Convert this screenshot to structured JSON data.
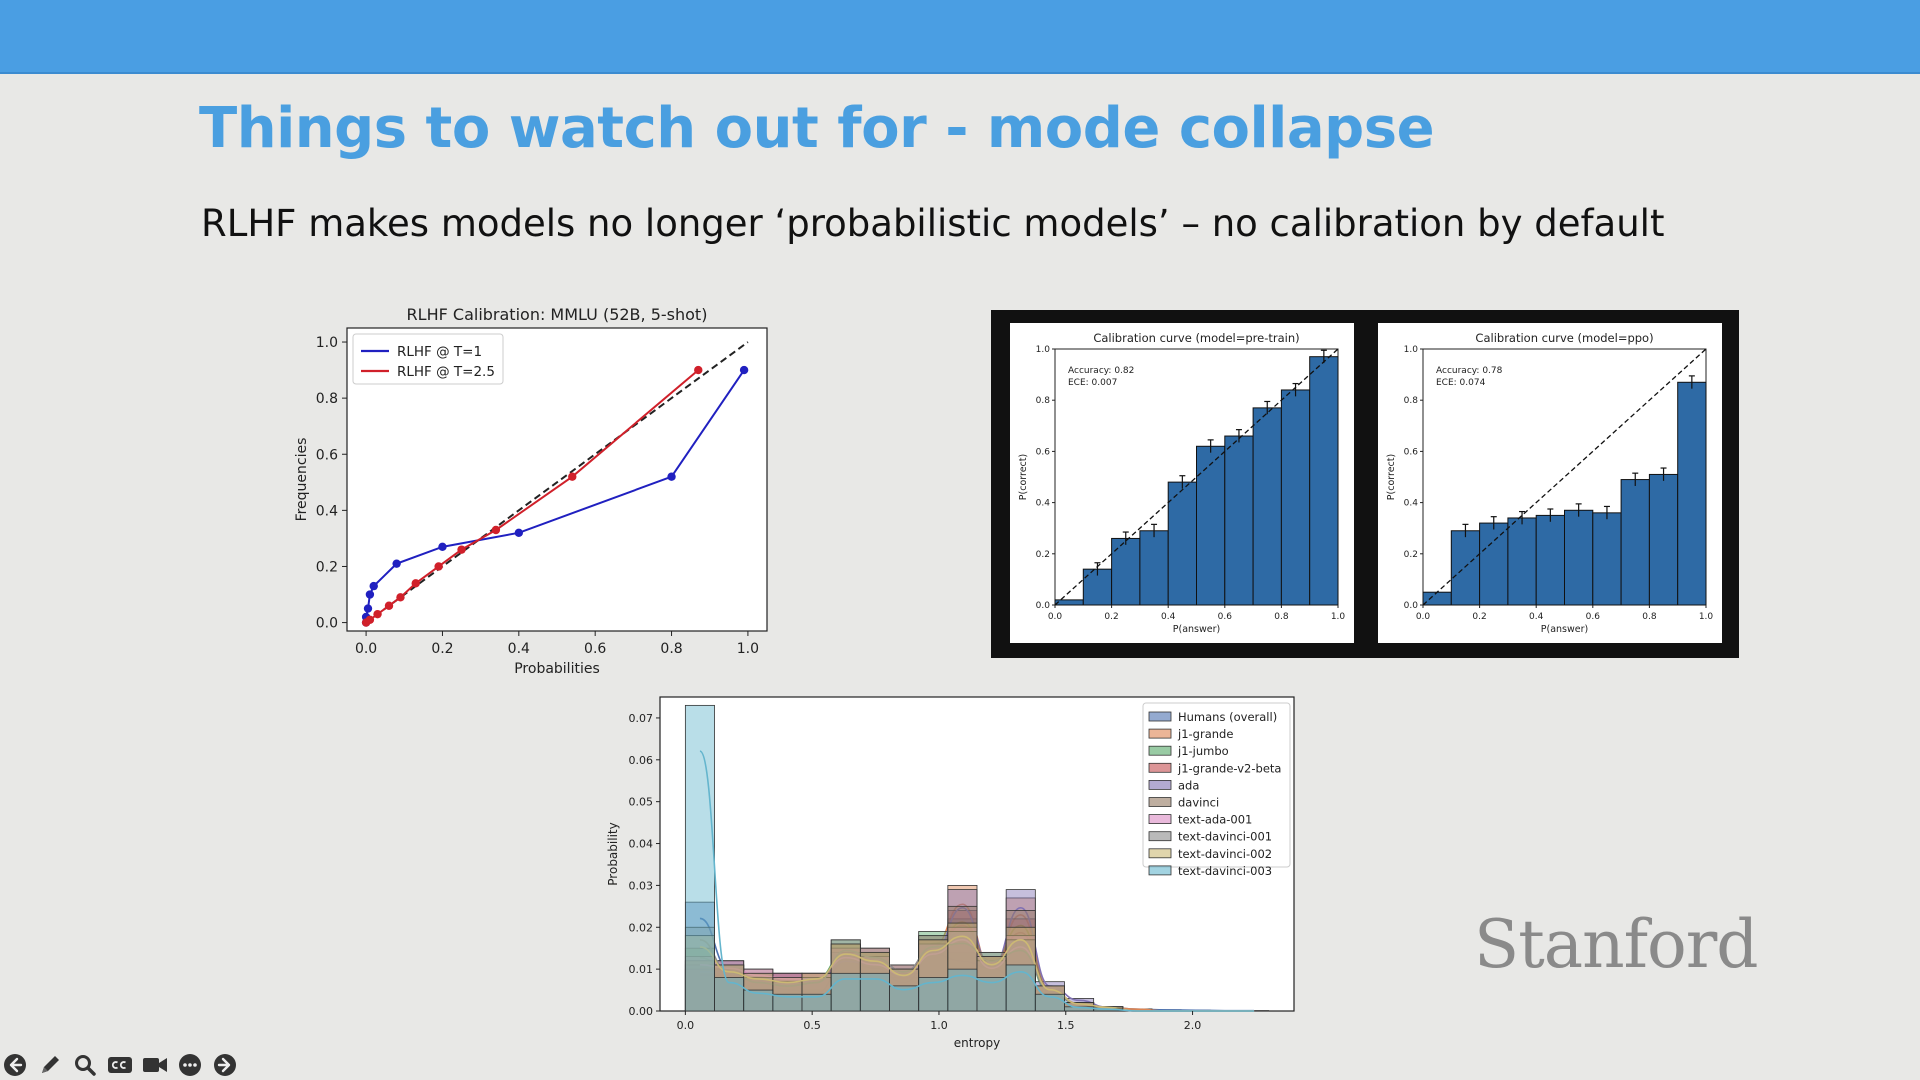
{
  "slide": {
    "title": "Things to watch out for - mode collapse",
    "subtitle": "RLHF makes models no longer ‘probabilistic models’ – no calibration by default",
    "logo_text": "Stanford",
    "colors": {
      "header_bar": "#4a9ee3",
      "title": "#4a9fe0",
      "background": "#e8e8e6"
    }
  },
  "toolbar": {
    "icons": [
      "back-icon",
      "pencil-icon",
      "magnify-icon",
      "closed-captions-icon",
      "video-camera-icon",
      "more-icon",
      "forward-icon"
    ]
  },
  "chart_data": [
    {
      "type": "line",
      "title": "RLHF  Calibration: MMLU (52B, 5-shot)",
      "xlabel": "Probabilities",
      "ylabel": "Frequencies",
      "xlim": [
        -0.05,
        1.05
      ],
      "ylim": [
        -0.03,
        1.05
      ],
      "xticks": [
        "0.0",
        "0.2",
        "0.4",
        "0.6",
        "0.8",
        "1.0"
      ],
      "yticks": [
        "0.0",
        "0.2",
        "0.4",
        "0.6",
        "0.8",
        "1.0"
      ],
      "legend_position": "top-left",
      "series": [
        {
          "name": "RLHF @ T=1",
          "color": "#2020c0",
          "x": [
            0.0,
            0.0,
            0.005,
            0.01,
            0.02,
            0.08,
            0.2,
            0.4,
            0.8,
            0.99
          ],
          "y": [
            0.0,
            0.02,
            0.05,
            0.1,
            0.13,
            0.21,
            0.27,
            0.32,
            0.52,
            0.9
          ]
        },
        {
          "name": "RLHF @ T=2.5",
          "color": "#d0202a",
          "x": [
            0.0,
            0.01,
            0.03,
            0.06,
            0.09,
            0.13,
            0.19,
            0.25,
            0.34,
            0.54,
            0.87
          ],
          "y": [
            0.0,
            0.01,
            0.03,
            0.06,
            0.09,
            0.14,
            0.2,
            0.26,
            0.33,
            0.52,
            0.9
          ]
        }
      ],
      "reference_line": {
        "style": "dashed",
        "color": "#222222",
        "x": [
          0.0,
          1.0
        ],
        "y": [
          0.0,
          1.0
        ]
      }
    },
    {
      "type": "bar",
      "title": "Calibration curve (model=pre-train)",
      "xlabel": "P(answer)",
      "ylabel": "P(correct)",
      "annotations": [
        "Accuracy: 0.82",
        "ECE: 0.007"
      ],
      "xlim": [
        0,
        1
      ],
      "ylim": [
        0,
        1
      ],
      "xticks": [
        "0.0",
        "0.2",
        "0.4",
        "0.6",
        "0.8",
        "1.0"
      ],
      "yticks": [
        "0.0",
        "0.2",
        "0.4",
        "0.6",
        "0.8",
        "1.0"
      ],
      "categories": [
        "0.0-0.1",
        "0.1-0.2",
        "0.2-0.3",
        "0.3-0.4",
        "0.4-0.5",
        "0.5-0.6",
        "0.6-0.7",
        "0.7-0.8",
        "0.8-0.9",
        "0.9-1.0"
      ],
      "values": [
        0.02,
        0.14,
        0.26,
        0.29,
        0.48,
        0.62,
        0.66,
        0.77,
        0.84,
        0.97
      ],
      "error_bars": true,
      "bar_color": "#2e6aa5",
      "reference_line": {
        "style": "dashed",
        "x": [
          0,
          1
        ],
        "y": [
          0,
          1
        ]
      }
    },
    {
      "type": "bar",
      "title": "Calibration curve (model=ppo)",
      "xlabel": "P(answer)",
      "ylabel": "P(correct)",
      "annotations": [
        "Accuracy: 0.78",
        "ECE: 0.074"
      ],
      "xlim": [
        0,
        1
      ],
      "ylim": [
        0,
        1
      ],
      "xticks": [
        "0.0",
        "0.2",
        "0.4",
        "0.6",
        "0.8",
        "1.0"
      ],
      "yticks": [
        "0.0",
        "0.2",
        "0.4",
        "0.6",
        "0.8",
        "1.0"
      ],
      "categories": [
        "0.0-0.1",
        "0.1-0.2",
        "0.2-0.3",
        "0.3-0.4",
        "0.4-0.5",
        "0.5-0.6",
        "0.6-0.7",
        "0.7-0.8",
        "0.8-0.9",
        "0.9-1.0"
      ],
      "values": [
        0.05,
        0.29,
        0.32,
        0.34,
        0.35,
        0.37,
        0.36,
        0.49,
        0.51,
        0.87
      ],
      "error_bars": true,
      "bar_color": "#2e6aa5",
      "reference_line": {
        "style": "dashed",
        "x": [
          0,
          1
        ],
        "y": [
          0,
          1
        ]
      }
    },
    {
      "type": "bar",
      "subtype": "overlaid-histogram",
      "xlabel": "entropy",
      "ylabel": "Probability",
      "xlim": [
        -0.1,
        2.4
      ],
      "ylim": [
        0,
        0.075
      ],
      "xticks": [
        "0.0",
        "0.5",
        "1.0",
        "1.5",
        "2.0"
      ],
      "yticks": [
        "0.00",
        "0.01",
        "0.02",
        "0.03",
        "0.04",
        "0.05",
        "0.06",
        "0.07"
      ],
      "legend_position": "top-right",
      "bin_edges": [
        0.0,
        0.115,
        0.23,
        0.345,
        0.46,
        0.575,
        0.69,
        0.805,
        0.92,
        1.035,
        1.15,
        1.265,
        1.38,
        1.495,
        1.61,
        1.725,
        1.84,
        1.955,
        2.07,
        2.185,
        2.3
      ],
      "series": [
        {
          "name": "Humans (overall)",
          "color": "#4c72b0",
          "values": [
            0.026,
            0.012,
            0.008,
            0.006,
            0.005,
            0.014,
            0.012,
            0.008,
            0.016,
            0.014,
            0.012,
            0.008,
            0.005,
            0.002,
            0.001,
            0.0005,
            0.0003,
            0.0002,
            0.0001,
            0.0001
          ]
        },
        {
          "name": "j1-grande",
          "color": "#dd8452",
          "values": [
            0.012,
            0.01,
            0.008,
            0.009,
            0.008,
            0.016,
            0.013,
            0.009,
            0.018,
            0.03,
            0.012,
            0.027,
            0.006,
            0.002,
            0.001,
            0.0005,
            0,
            0,
            0,
            0
          ]
        },
        {
          "name": "j1-jumbo",
          "color": "#55a868",
          "values": [
            0.015,
            0.011,
            0.009,
            0.008,
            0.009,
            0.017,
            0.014,
            0.01,
            0.019,
            0.022,
            0.014,
            0.018,
            0.005,
            0.002,
            0.001,
            0,
            0,
            0,
            0,
            0
          ]
        },
        {
          "name": "j1-grande-v2-beta",
          "color": "#c44e52",
          "values": [
            0.01,
            0.01,
            0.009,
            0.009,
            0.009,
            0.015,
            0.015,
            0.011,
            0.017,
            0.024,
            0.013,
            0.022,
            0.006,
            0.002,
            0.001,
            0,
            0,
            0,
            0,
            0
          ]
        },
        {
          "name": "ada",
          "color": "#8172b3",
          "values": [
            0.011,
            0.011,
            0.009,
            0.009,
            0.008,
            0.014,
            0.013,
            0.01,
            0.016,
            0.029,
            0.012,
            0.029,
            0.007,
            0.003,
            0.001,
            0,
            0,
            0,
            0,
            0
          ]
        },
        {
          "name": "davinci",
          "color": "#937860",
          "values": [
            0.012,
            0.012,
            0.01,
            0.009,
            0.009,
            0.016,
            0.014,
            0.01,
            0.017,
            0.025,
            0.013,
            0.024,
            0.006,
            0.002,
            0.001,
            0,
            0,
            0,
            0,
            0
          ]
        },
        {
          "name": "text-ada-001",
          "color": "#da8bc3",
          "values": [
            0.013,
            0.012,
            0.01,
            0.009,
            0.009,
            0.015,
            0.013,
            0.01,
            0.016,
            0.02,
            0.012,
            0.018,
            0.006,
            0.002,
            0.001,
            0,
            0,
            0,
            0,
            0
          ]
        },
        {
          "name": "text-davinci-001",
          "color": "#8c8c8c",
          "values": [
            0.02,
            0.011,
            0.008,
            0.007,
            0.008,
            0.017,
            0.015,
            0.011,
            0.018,
            0.019,
            0.014,
            0.017,
            0.006,
            0.002,
            0.001,
            0,
            0,
            0,
            0,
            0
          ]
        },
        {
          "name": "text-davinci-002",
          "color": "#ccb974",
          "values": [
            0.018,
            0.011,
            0.009,
            0.008,
            0.009,
            0.016,
            0.014,
            0.01,
            0.017,
            0.021,
            0.013,
            0.02,
            0.006,
            0.002,
            0.001,
            0,
            0,
            0,
            0,
            0
          ]
        },
        {
          "name": "text-davinci-003",
          "color": "#64b5cd",
          "values": [
            0.073,
            0.008,
            0.005,
            0.004,
            0.004,
            0.009,
            0.009,
            0.006,
            0.008,
            0.01,
            0.008,
            0.011,
            0.004,
            0.001,
            0.0005,
            0,
            0,
            0,
            0,
            0
          ]
        }
      ]
    }
  ]
}
